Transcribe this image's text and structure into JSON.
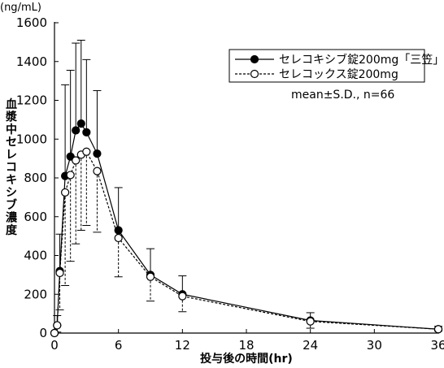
{
  "chart_data": {
    "type": "line",
    "ylabel_unit": "(ng/mL)",
    "ylabel": "血漿中セレコキシブ濃度",
    "xlabel": "投与後の時間(hr)",
    "annotation": "mean±S.D., n=66",
    "xlim": [
      0,
      36
    ],
    "ylim": [
      0,
      1600
    ],
    "xticks": [
      0,
      6,
      12,
      18,
      24,
      30,
      36
    ],
    "yticks": [
      0,
      200,
      400,
      600,
      800,
      1000,
      1200,
      1400,
      1600
    ],
    "xtick_labels": [
      "0",
      "6",
      "12",
      "18",
      "24",
      "30",
      "36"
    ],
    "ytick_labels": [
      "0",
      "200",
      "400",
      "600",
      "800",
      "1000",
      "1200",
      "1400",
      "1600"
    ],
    "legend_placement": "top-right",
    "series": [
      {
        "name": "セレコキシブ錠200mg「三笠」",
        "marker": "filled-circle",
        "line": "solid",
        "errorbar_direction": "up",
        "x": [
          0,
          0.25,
          0.5,
          1,
          1.5,
          2,
          2.5,
          3,
          4,
          6,
          9,
          12,
          24,
          36
        ],
        "y": [
          0,
          40,
          320,
          810,
          910,
          1045,
          1080,
          1035,
          925,
          530,
          300,
          200,
          65,
          20
        ],
        "err": [
          0,
          50,
          190,
          470,
          445,
          450,
          430,
          375,
          325,
          220,
          135,
          95,
          40,
          15
        ]
      },
      {
        "name": "セレコックス錠200mg",
        "marker": "open-circle",
        "line": "dashed",
        "errorbar_direction": "down",
        "x": [
          0,
          0.25,
          0.5,
          1,
          1.5,
          2,
          2.5,
          3,
          4,
          6,
          9,
          12,
          24,
          36
        ],
        "y": [
          0,
          40,
          310,
          725,
          815,
          890,
          920,
          935,
          835,
          490,
          290,
          190,
          60,
          20
        ],
        "err": [
          0,
          35,
          190,
          480,
          445,
          430,
          390,
          380,
          315,
          200,
          125,
          80,
          35,
          10
        ]
      }
    ]
  }
}
